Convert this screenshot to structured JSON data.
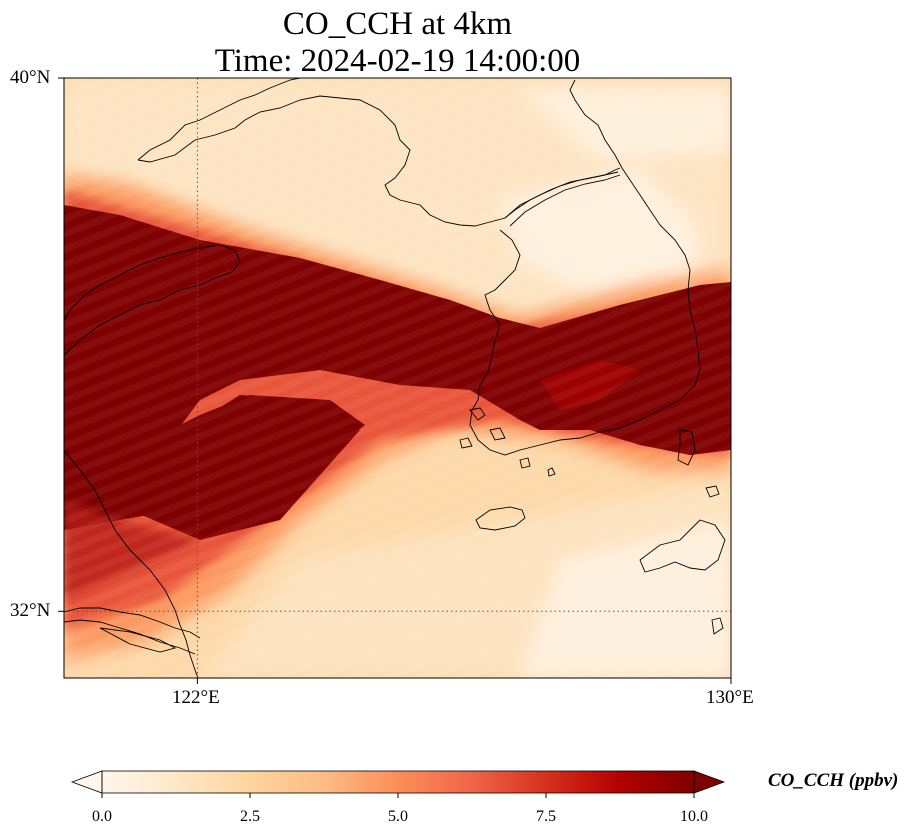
{
  "title": {
    "line1": "CO_CCH at 4km",
    "line2": "Time: 2024-02-19 14:00:00"
  },
  "axes": {
    "lat_labels": [
      "40°N",
      "32°N"
    ],
    "lon_labels": [
      "122°E",
      "130°E"
    ]
  },
  "extent": {
    "lon_min": 120,
    "lon_max": 130,
    "lat_min": 31,
    "lat_max": 40
  },
  "colorbar": {
    "label": "CO_CCH (ppbv)",
    "ticks": [
      "0.0",
      "2.5",
      "5.0",
      "7.5",
      "10.0"
    ],
    "vmin": 0,
    "vmax": 10,
    "extend": "both",
    "colormap": "OrRd",
    "colors": [
      "#fff7ec",
      "#fee8c8",
      "#fdd49e",
      "#fdbb84",
      "#fc8d59",
      "#ef6548",
      "#d7301f",
      "#b30000",
      "#7f0000"
    ]
  },
  "chart_data": {
    "type": "heatmap",
    "variable": "CO_CCH",
    "units": "ppbv",
    "level": "4km",
    "time": "2024-02-19 14:00:00",
    "gridlines": {
      "lon": [
        122
      ],
      "lat": [
        32
      ]
    },
    "plume_description_values": {
      "max_band_center_value": 10.0,
      "background_value_north": 1.5,
      "background_value_south": 1.8
    }
  }
}
